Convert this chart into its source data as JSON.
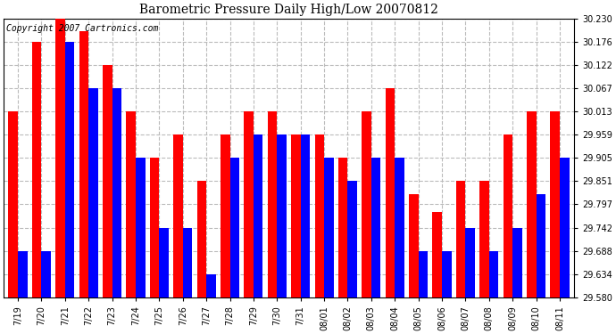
{
  "title": "Barometric Pressure Daily High/Low 20070812",
  "copyright": "Copyright 2007 Cartronics.com",
  "categories": [
    "7/19",
    "7/20",
    "7/21",
    "7/22",
    "7/23",
    "7/24",
    "7/25",
    "7/26",
    "7/27",
    "7/28",
    "7/29",
    "7/30",
    "7/31",
    "08/01",
    "08/02",
    "08/03",
    "08/04",
    "08/05",
    "08/06",
    "08/07",
    "08/08",
    "08/09",
    "08/10",
    "08/11"
  ],
  "high_values": [
    30.013,
    30.176,
    30.23,
    30.2,
    30.122,
    30.013,
    29.905,
    29.959,
    29.851,
    29.959,
    30.013,
    30.013,
    29.959,
    29.959,
    29.905,
    30.013,
    30.067,
    29.82,
    29.78,
    29.851,
    29.851,
    29.959,
    30.013,
    30.013
  ],
  "low_values": [
    29.688,
    29.688,
    30.176,
    30.067,
    30.067,
    29.905,
    29.742,
    29.742,
    29.634,
    29.905,
    29.959,
    29.959,
    29.959,
    29.905,
    29.851,
    29.905,
    29.905,
    29.688,
    29.688,
    29.742,
    29.688,
    29.742,
    29.82,
    29.905
  ],
  "y_min": 29.58,
  "y_max": 30.23,
  "yticks": [
    29.58,
    29.634,
    29.688,
    29.742,
    29.797,
    29.851,
    29.905,
    29.959,
    30.013,
    30.067,
    30.122,
    30.176,
    30.23
  ],
  "bar_color_high": "#ff0000",
  "bar_color_low": "#0000ff",
  "background_color": "#ffffff",
  "grid_color": "#bbbbbb",
  "title_fontsize": 10,
  "copyright_fontsize": 7,
  "tick_fontsize": 7,
  "bar_width": 0.4
}
